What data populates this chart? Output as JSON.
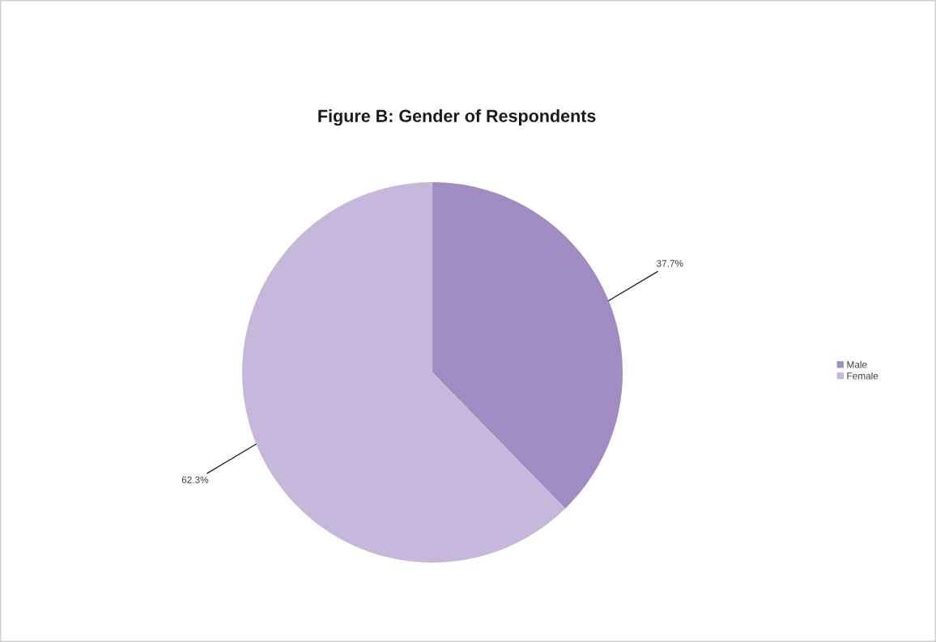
{
  "chart_data": {
    "type": "pie",
    "title": "Figure B: Gender of Respondents",
    "categories": [
      "Male",
      "Female"
    ],
    "values": [
      37.7,
      62.3
    ],
    "colors": [
      "#a08cc2",
      "#c6b8db"
    ],
    "value_labels": [
      "37.7%",
      "62.3%"
    ],
    "legend": "right"
  }
}
